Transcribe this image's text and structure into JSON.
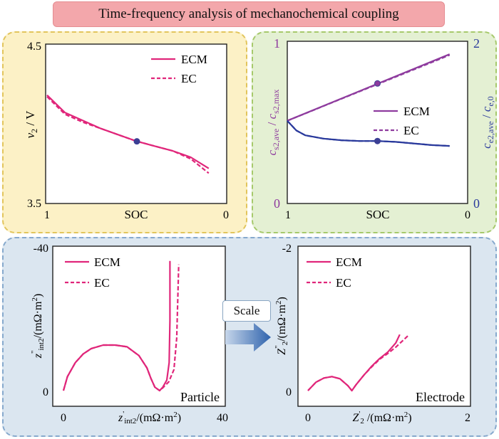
{
  "title": "Time-frequency analysis of mechanochemical coupling",
  "scale_label": "Scale",
  "colors": {
    "ecm": "#e0267a",
    "concentration_particle": "#8e3b9e",
    "concentration_electrolyte": "#2a3a9c",
    "marker": "#3b3f94",
    "panel_yellow": "#fcf1c6",
    "panel_green": "#e4f0d3",
    "panel_blue": "#dbe6f0",
    "arrow": "#3f72b5"
  },
  "chart_data": [
    {
      "id": "voltage",
      "type": "line",
      "xlabel": "SOC",
      "ylabel_main": "v",
      "ylabel_sub": "2",
      "ylabel_unit": " / V",
      "xlim": [
        1,
        0
      ],
      "ylim": [
        3.5,
        4.5
      ],
      "x_ticks": [
        "1",
        "0"
      ],
      "y_ticks": [
        "3.5",
        "4.5"
      ],
      "legend": [
        "ECM",
        "EC"
      ],
      "legend_position": "top-right",
      "series": [
        {
          "name": "ECM",
          "style": "solid",
          "x": [
            1.0,
            0.9,
            0.8,
            0.7,
            0.6,
            0.5,
            0.4,
            0.3,
            0.2,
            0.1
          ],
          "y": [
            4.18,
            4.07,
            4.02,
            3.97,
            3.93,
            3.89,
            3.86,
            3.83,
            3.79,
            3.72
          ]
        },
        {
          "name": "EC",
          "style": "dashed",
          "x": [
            1.0,
            0.9,
            0.8,
            0.7,
            0.6,
            0.5,
            0.4,
            0.3,
            0.2,
            0.1
          ],
          "y": [
            4.17,
            4.06,
            4.01,
            3.97,
            3.93,
            3.89,
            3.86,
            3.83,
            3.78,
            3.69
          ]
        }
      ],
      "markers": [
        {
          "x": 0.5,
          "y": 3.89
        }
      ]
    },
    {
      "id": "concentration",
      "type": "line",
      "xlabel": "SOC",
      "ylabel_left_html": "c_{s2,ave} / c_{s2,max}",
      "ylabel_right_html": "c_{e2,ave} / c_{e,0}",
      "xlim": [
        1,
        0
      ],
      "ylim_left": [
        0,
        1
      ],
      "ylim_right": [
        0,
        2
      ],
      "x_ticks": [
        "1",
        "0"
      ],
      "y_ticks_left": [
        "0",
        "1"
      ],
      "y_ticks_right": [
        "0",
        "2"
      ],
      "legend": [
        "ECM",
        "EC"
      ],
      "legend_position": "center-right",
      "series": [
        {
          "name": "ECM",
          "axis": "left",
          "style": "solid",
          "x": [
            1.0,
            0.1
          ],
          "y": [
            0.51,
            0.92
          ]
        },
        {
          "name": "EC",
          "axis": "left",
          "style": "dashed",
          "x": [
            1.0,
            0.1
          ],
          "y": [
            0.51,
            0.915
          ]
        },
        {
          "name": "ECM",
          "axis": "right",
          "style": "solid",
          "x": [
            1.0,
            0.95,
            0.9,
            0.8,
            0.7,
            0.6,
            0.5,
            0.4,
            0.3,
            0.2,
            0.1
          ],
          "y": [
            1.02,
            0.9,
            0.84,
            0.8,
            0.78,
            0.77,
            0.77,
            0.76,
            0.74,
            0.72,
            0.71
          ]
        },
        {
          "name": "EC",
          "axis": "right",
          "style": "dashed",
          "x": [
            1.0,
            0.95,
            0.9,
            0.8,
            0.7,
            0.6,
            0.5,
            0.4,
            0.3,
            0.2,
            0.1
          ],
          "y": [
            1.02,
            0.9,
            0.84,
            0.8,
            0.78,
            0.77,
            0.77,
            0.76,
            0.74,
            0.72,
            0.71
          ]
        }
      ],
      "markers": [
        {
          "axis": "left",
          "x": 0.5,
          "y": 0.74
        },
        {
          "axis": "right",
          "x": 0.5,
          "y": 0.77
        }
      ]
    },
    {
      "id": "particle_impedance",
      "type": "line",
      "xlabel_html": "z'_{int2}/(mΩ·m^{2})",
      "ylabel_html": "z\"_{int2}/(mΩ·m^{2})",
      "xlim": [
        0,
        40
      ],
      "ylim": [
        0,
        -40
      ],
      "x_ticks": [
        "0",
        "40"
      ],
      "y_ticks": [
        "0",
        "-40"
      ],
      "annotation": "Particle",
      "legend": [
        "ECM",
        "EC"
      ],
      "legend_position": "top-left",
      "series": [
        {
          "name": "ECM",
          "style": "solid",
          "x": [
            0,
            1,
            3,
            5,
            7,
            10,
            13,
            16,
            19,
            21,
            22,
            23,
            24.2,
            25,
            26,
            26.6,
            26.8,
            26.8
          ],
          "y": [
            0,
            -4,
            -8,
            -10.5,
            -12,
            -13,
            -13,
            -12.5,
            -10,
            -6.5,
            -3.5,
            -1,
            0,
            -1,
            -3,
            -8,
            -20,
            -37
          ]
        },
        {
          "name": "EC",
          "style": "dashed",
          "x": [
            0,
            1,
            3,
            5,
            7,
            10,
            13,
            16,
            19,
            21,
            22,
            23,
            24.2,
            25,
            26.5,
            27.8,
            28.5,
            29
          ],
          "y": [
            0,
            -4,
            -8,
            -10.5,
            -12,
            -13,
            -13,
            -12.5,
            -10,
            -6.5,
            -3.5,
            -1,
            0,
            -0.8,
            -2.5,
            -6,
            -15,
            -36
          ]
        }
      ]
    },
    {
      "id": "electrode_impedance",
      "type": "line",
      "xlabel_html": "Z'_{2}/(mΩ·m^{2})",
      "ylabel_html": "Z\"_{2}/(mΩ·m^{2})",
      "xlim": [
        0,
        2
      ],
      "ylim": [
        0,
        -2
      ],
      "x_ticks": [
        "0",
        "2"
      ],
      "y_ticks": [
        "0",
        "-2"
      ],
      "annotation": "Electrode",
      "legend": [
        "ECM",
        "EC"
      ],
      "legend_position": "top-left",
      "series": [
        {
          "name": "ECM",
          "style": "solid",
          "x": [
            0,
            0.1,
            0.2,
            0.3,
            0.4,
            0.5,
            0.55,
            0.6,
            0.7,
            0.8,
            0.9,
            1.0,
            1.1,
            1.15
          ],
          "y": [
            0,
            -0.12,
            -0.18,
            -0.2,
            -0.17,
            -0.07,
            0,
            -0.08,
            -0.22,
            -0.35,
            -0.46,
            -0.55,
            -0.68,
            -0.8
          ]
        },
        {
          "name": "EC",
          "style": "dashed",
          "x": [
            0,
            0.1,
            0.2,
            0.3,
            0.4,
            0.5,
            0.55,
            0.6,
            0.7,
            0.8,
            0.9,
            1.0,
            1.1,
            1.25
          ],
          "y": [
            0,
            -0.12,
            -0.18,
            -0.2,
            -0.17,
            -0.07,
            0,
            -0.08,
            -0.22,
            -0.34,
            -0.45,
            -0.53,
            -0.62,
            -0.78
          ]
        }
      ]
    }
  ]
}
